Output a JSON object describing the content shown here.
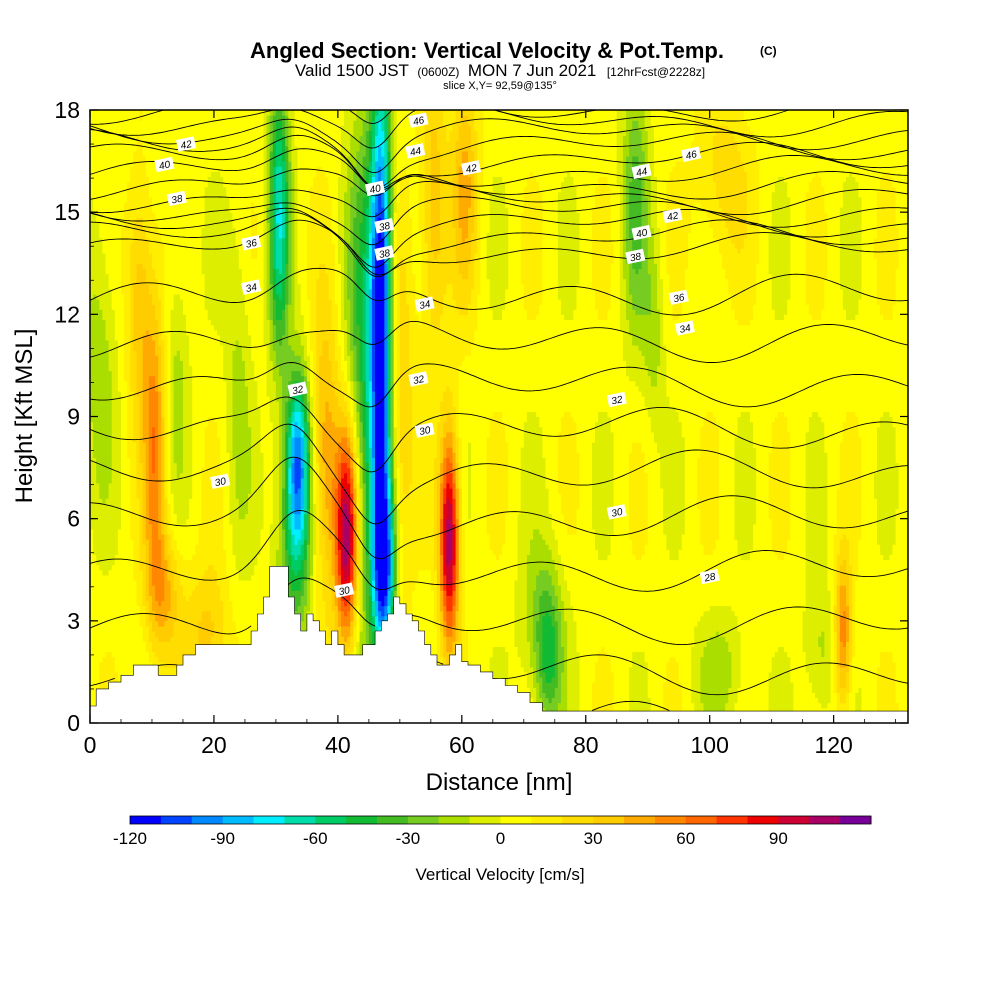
{
  "header": {
    "title": "Angled Section: Vertical Velocity & Pot.Temp.",
    "copyright": "(C)",
    "valid_pre": "Valid 1500 JST",
    "valid_zulu": "(0600Z)",
    "valid_post": "MON 7 Jun 2021",
    "forecast": "[12hrFcst@2228z]",
    "slice": "slice X,Y= 92,59@135°"
  },
  "chart_data": {
    "type": "heatmap",
    "xlabel": "Distance [nm]",
    "ylabel": "Height [Kft MSL]",
    "xlim": [
      0,
      132
    ],
    "ylim": [
      0,
      18
    ],
    "xticks": [
      0,
      20,
      40,
      60,
      80,
      100,
      120
    ],
    "yticks": [
      0,
      3,
      6,
      9,
      12,
      15,
      18
    ],
    "grid": false,
    "background_value": 5,
    "velocity_features": [
      {
        "x": 41.5,
        "y": 5.5,
        "sx": 1.3,
        "sy": 2.3,
        "value": 110
      },
      {
        "x": 58.0,
        "y": 5.4,
        "sx": 1.1,
        "sy": 2.2,
        "value": 105
      },
      {
        "x": 47.0,
        "y": 12.0,
        "sx": 1.2,
        "sy": 5.0,
        "value": -120
      },
      {
        "x": 47.5,
        "y": 4.5,
        "sx": 1.3,
        "sy": 1.8,
        "value": -95
      },
      {
        "x": 33.5,
        "y": 7.8,
        "sx": 1.4,
        "sy": 1.8,
        "value": -95
      },
      {
        "x": 30.5,
        "y": 15.0,
        "sx": 1.2,
        "sy": 3.0,
        "value": -70
      },
      {
        "x": 44.5,
        "y": 10.0,
        "sx": 2.2,
        "sy": 6.0,
        "value": -50
      },
      {
        "x": 33.0,
        "y": 5.0,
        "sx": 2.0,
        "sy": 2.0,
        "value": -45
      },
      {
        "x": 88.0,
        "y": 15.5,
        "sx": 1.5,
        "sy": 3.0,
        "value": -35
      },
      {
        "x": 91.0,
        "y": 11.5,
        "sx": 1.2,
        "sy": 2.0,
        "value": -20
      },
      {
        "x": 73.0,
        "y": 3.0,
        "sx": 2.5,
        "sy": 1.8,
        "value": -25
      },
      {
        "x": 74.0,
        "y": 1.8,
        "sx": 1.5,
        "sy": 1.5,
        "value": -35
      },
      {
        "x": 102.0,
        "y": 1.5,
        "sx": 3.0,
        "sy": 1.2,
        "value": -20
      },
      {
        "x": 118.0,
        "y": 2.0,
        "sx": 2.0,
        "sy": 1.5,
        "value": -20
      },
      {
        "x": 14.0,
        "y": 10.5,
        "sx": 1.4,
        "sy": 2.5,
        "value": -18
      },
      {
        "x": 1.5,
        "y": 11.0,
        "sx": 2.0,
        "sy": 3.0,
        "value": -22
      },
      {
        "x": 24.0,
        "y": 10.0,
        "sx": 1.5,
        "sy": 3.5,
        "value": -18
      },
      {
        "x": 10.5,
        "y": 8.0,
        "sx": 1.3,
        "sy": 3.0,
        "value": 50
      },
      {
        "x": 12.0,
        "y": 3.8,
        "sx": 2.0,
        "sy": 1.3,
        "value": 35
      },
      {
        "x": 19.0,
        "y": 2.5,
        "sx": 2.5,
        "sy": 1.5,
        "value": 30
      },
      {
        "x": 38.0,
        "y": 7.8,
        "sx": 1.6,
        "sy": 3.0,
        "value": 45
      },
      {
        "x": 50.0,
        "y": 9.0,
        "sx": 1.6,
        "sy": 4.0,
        "value": 28
      },
      {
        "x": 55.5,
        "y": 15.0,
        "sx": 1.5,
        "sy": 3.0,
        "value": 35
      },
      {
        "x": 60.5,
        "y": 16.0,
        "sx": 1.5,
        "sy": 2.5,
        "value": 35
      },
      {
        "x": 8.0,
        "y": 12.5,
        "sx": 1.5,
        "sy": 2.5,
        "value": 35
      },
      {
        "x": 121.5,
        "y": 2.6,
        "sx": 1.0,
        "sy": 1.6,
        "value": 55
      },
      {
        "x": 102.0,
        "y": 16.0,
        "sx": 3.0,
        "sy": 1.8,
        "value": 22
      }
    ],
    "terrain_profile": [
      [
        0,
        0.5
      ],
      [
        1,
        1.0
      ],
      [
        3,
        1.2
      ],
      [
        5,
        1.4
      ],
      [
        7,
        1.7
      ],
      [
        9,
        1.7
      ],
      [
        11,
        1.4
      ],
      [
        13,
        1.4
      ],
      [
        14,
        1.7
      ],
      [
        15,
        2.0
      ],
      [
        17,
        2.3
      ],
      [
        19,
        2.3
      ],
      [
        21,
        2.3
      ],
      [
        23,
        2.3
      ],
      [
        25,
        2.3
      ],
      [
        26,
        2.7
      ],
      [
        27,
        3.2
      ],
      [
        28,
        3.7
      ],
      [
        29,
        4.6
      ],
      [
        31,
        4.6
      ],
      [
        32,
        3.7
      ],
      [
        33,
        3.2
      ],
      [
        34,
        2.7
      ],
      [
        35,
        3.2
      ],
      [
        36,
        3.0
      ],
      [
        37,
        2.7
      ],
      [
        38,
        2.3
      ],
      [
        39,
        2.7
      ],
      [
        40,
        2.3
      ],
      [
        41,
        2.0
      ],
      [
        42,
        2.0
      ],
      [
        43,
        2.0
      ],
      [
        44,
        2.3
      ],
      [
        45,
        2.3
      ],
      [
        46,
        2.7
      ],
      [
        47,
        3.0
      ],
      [
        48,
        3.2
      ],
      [
        49,
        3.7
      ],
      [
        50,
        3.5
      ],
      [
        51,
        3.2
      ],
      [
        52,
        3.0
      ],
      [
        53,
        2.7
      ],
      [
        54,
        2.3
      ],
      [
        55,
        2.0
      ],
      [
        56,
        1.7
      ],
      [
        57,
        1.7
      ],
      [
        58,
        2.0
      ],
      [
        59,
        2.3
      ],
      [
        60,
        1.8
      ],
      [
        61,
        1.7
      ],
      [
        63,
        1.5
      ],
      [
        65,
        1.3
      ],
      [
        67,
        1.1
      ],
      [
        69,
        0.9
      ],
      [
        71,
        0.6
      ],
      [
        73,
        0.35
      ],
      [
        132,
        0.35
      ]
    ],
    "contour_levels": [
      26,
      27,
      28,
      29,
      30,
      31,
      32,
      33,
      34,
      35,
      36,
      37,
      38,
      39,
      40,
      41,
      42,
      43,
      44,
      45,
      46,
      47,
      48
    ],
    "contour_labels": [
      {
        "value": "46",
        "x": 53,
        "y": 17.7
      },
      {
        "value": "44",
        "x": 52.5,
        "y": 16.8
      },
      {
        "value": "42",
        "x": 15.5,
        "y": 17.0
      },
      {
        "value": "42",
        "x": 61.5,
        "y": 16.3
      },
      {
        "value": "40",
        "x": 12,
        "y": 16.4
      },
      {
        "value": "40",
        "x": 46,
        "y": 15.7
      },
      {
        "value": "38",
        "x": 14,
        "y": 15.4
      },
      {
        "value": "38",
        "x": 47.5,
        "y": 14.6
      },
      {
        "value": "38",
        "x": 47.5,
        "y": 13.8
      },
      {
        "value": "36",
        "x": 26,
        "y": 14.1
      },
      {
        "value": "34",
        "x": 26,
        "y": 12.8
      },
      {
        "value": "34",
        "x": 54,
        "y": 12.3
      },
      {
        "value": "32",
        "x": 33.5,
        "y": 9.8
      },
      {
        "value": "32",
        "x": 53,
        "y": 10.1
      },
      {
        "value": "30",
        "x": 21,
        "y": 7.1
      },
      {
        "value": "30",
        "x": 54,
        "y": 8.6
      },
      {
        "value": "30",
        "x": 41,
        "y": 3.9
      },
      {
        "value": "46",
        "x": 97,
        "y": 16.7
      },
      {
        "value": "44",
        "x": 89,
        "y": 16.2
      },
      {
        "value": "42",
        "x": 94,
        "y": 14.9
      },
      {
        "value": "40",
        "x": 89,
        "y": 14.4
      },
      {
        "value": "38",
        "x": 88,
        "y": 13.7
      },
      {
        "value": "36",
        "x": 95,
        "y": 12.5
      },
      {
        "value": "34",
        "x": 96,
        "y": 11.6
      },
      {
        "value": "32",
        "x": 85,
        "y": 9.5
      },
      {
        "value": "30",
        "x": 85,
        "y": 6.2
      },
      {
        "value": "28",
        "x": 100,
        "y": 4.3
      }
    ]
  },
  "colorbar": {
    "label": "Vertical Velocity [cm/s]",
    "min": -120,
    "max": 110,
    "step": 10,
    "ticks": [
      "-120",
      "-90",
      "-60",
      "-30",
      "0",
      "30",
      "60",
      "90"
    ],
    "tick_values": [
      -120,
      -90,
      -60,
      -30,
      0,
      30,
      60,
      90
    ],
    "colors": [
      "#0000ff",
      "#0044ff",
      "#0088ff",
      "#00bbff",
      "#00eeff",
      "#00ddaa",
      "#00cc66",
      "#11bb33",
      "#44bb22",
      "#77cc22",
      "#aadd00",
      "#ddee00",
      "#ffff00",
      "#ffee00",
      "#ffdd00",
      "#ffcc00",
      "#ffaa00",
      "#ff8800",
      "#ff6600",
      "#ff3300",
      "#ee0000",
      "#cc0033",
      "#aa0066",
      "#770099"
    ]
  }
}
